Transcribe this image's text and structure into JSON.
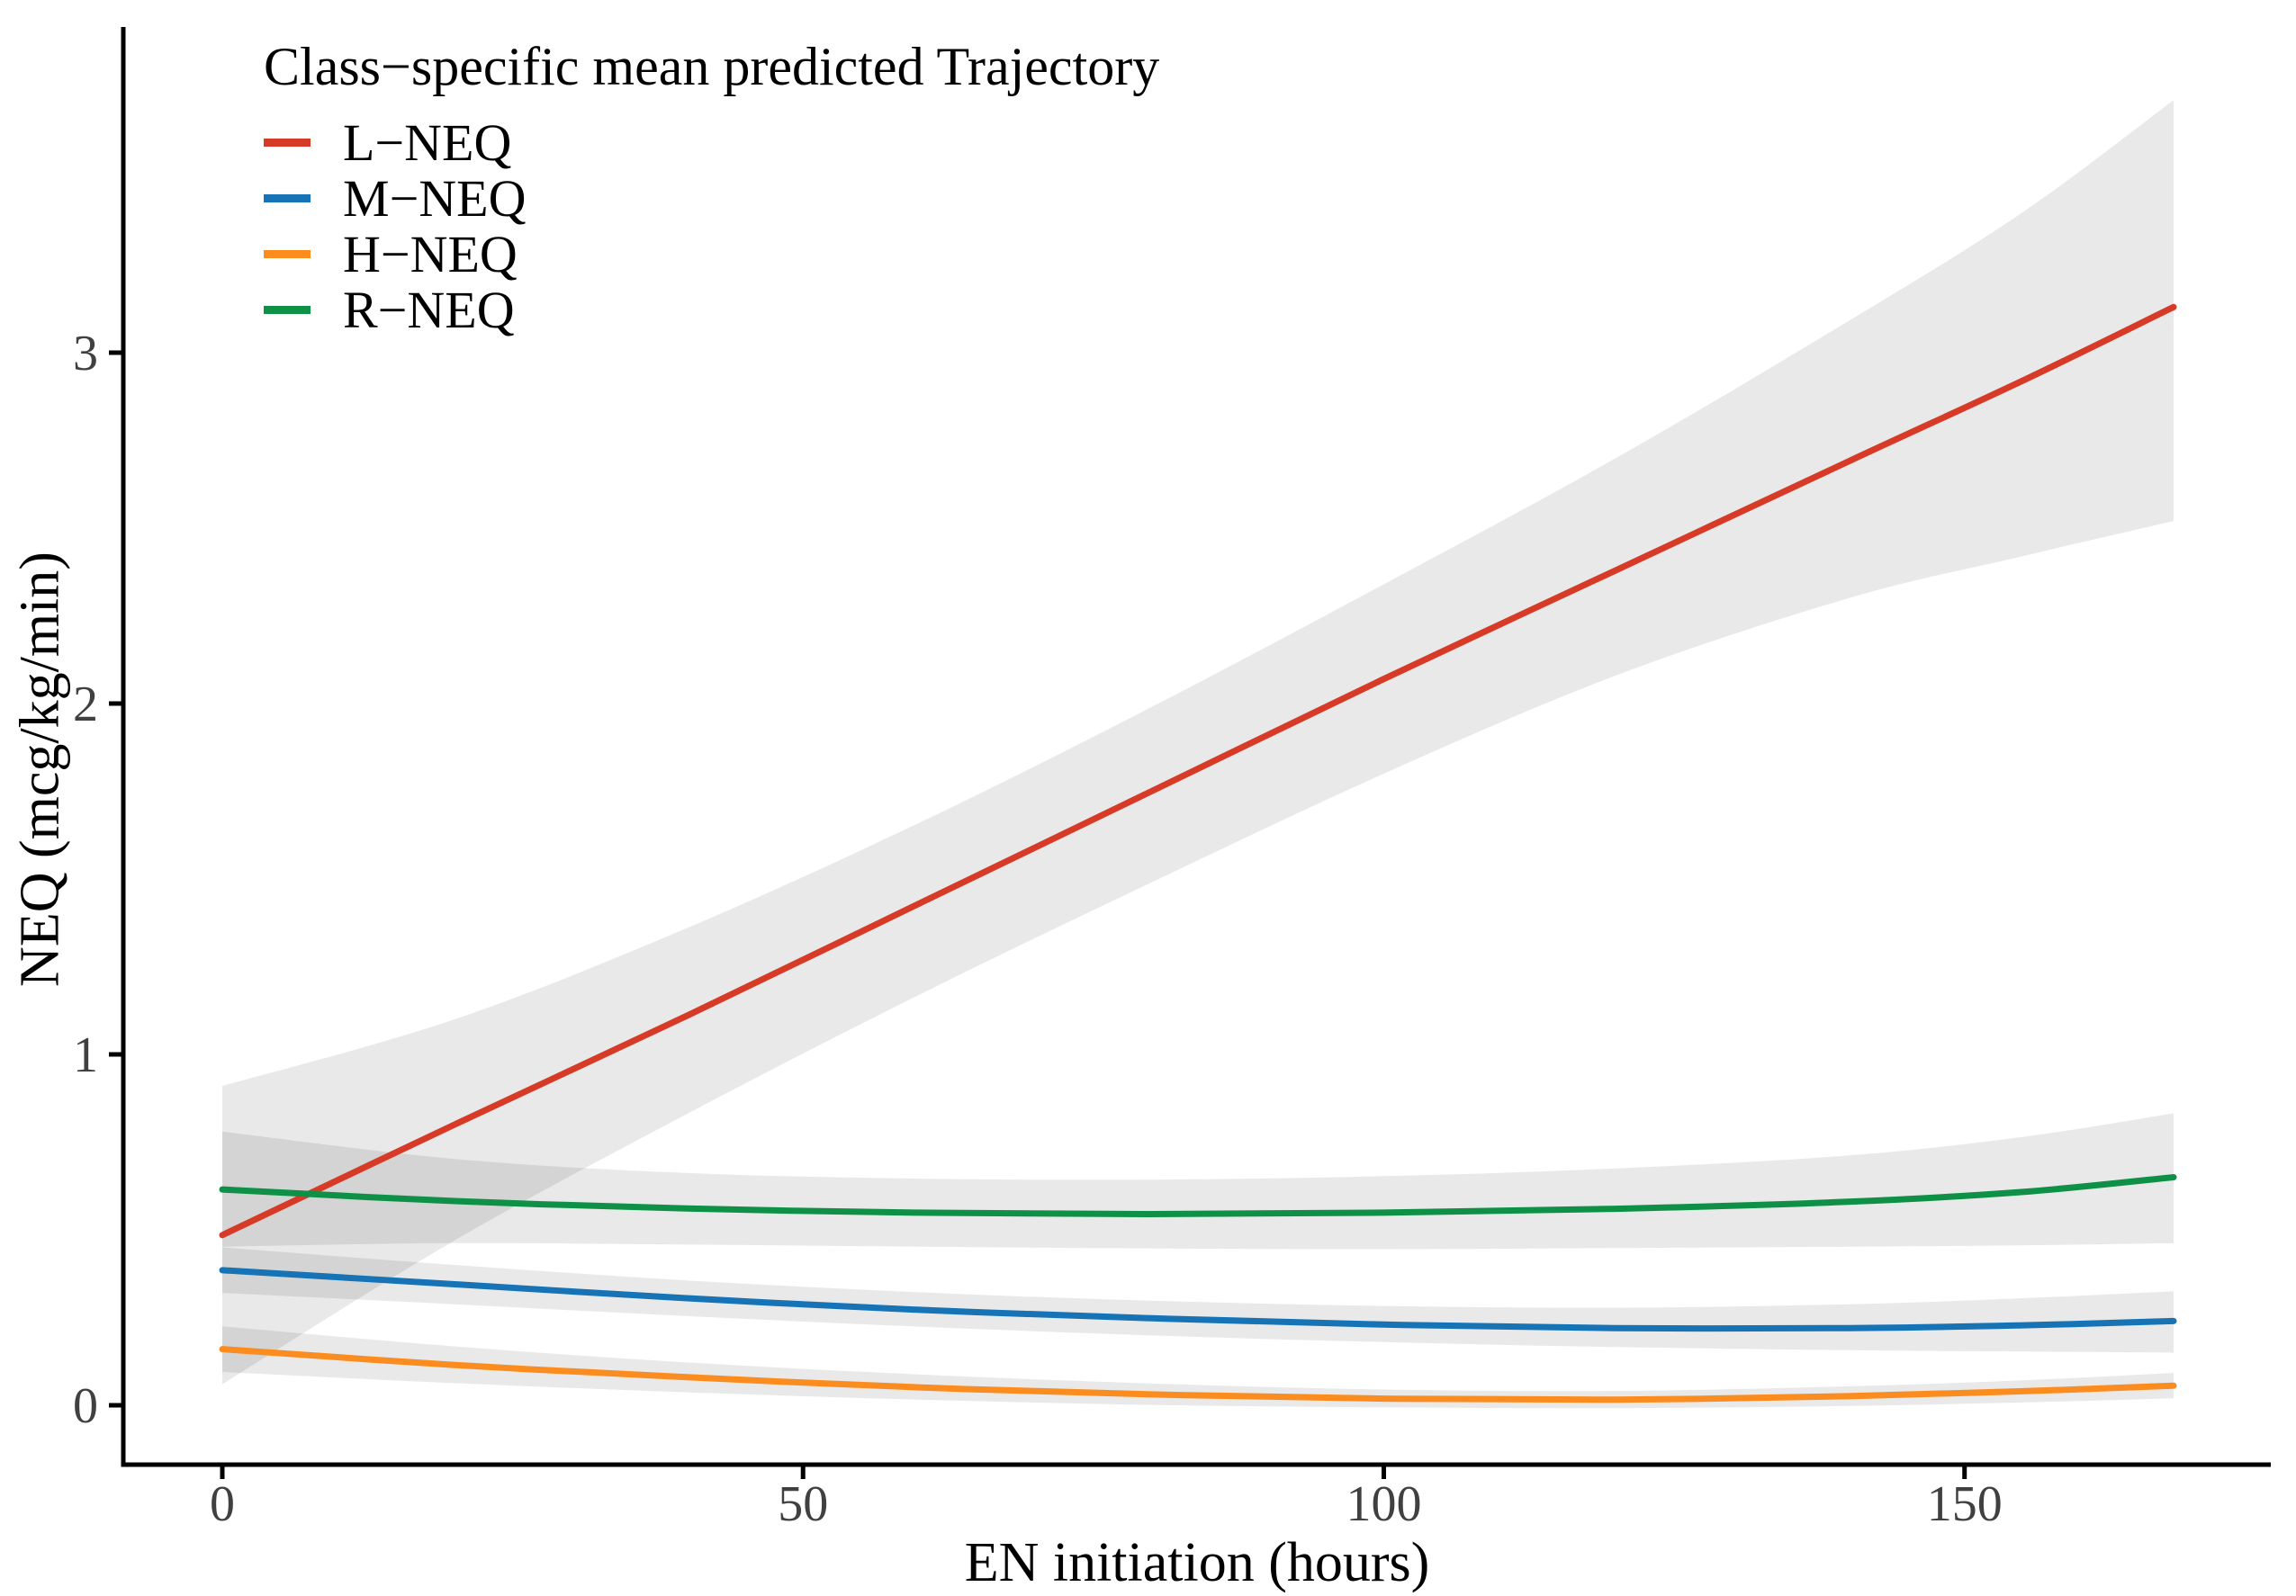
{
  "figure": {
    "background": "#ffffff",
    "text_color": "#000000",
    "tick_label_color": "#404040",
    "axis_color": "#000000"
  },
  "legend": {
    "title": "Class−specific mean predicted Trajectory",
    "entries": [
      {
        "name": "L−NEQ",
        "color": "#d73a27"
      },
      {
        "name": "M−NEQ",
        "color": "#1673b6"
      },
      {
        "name": "H−NEQ",
        "color": "#fb8c1f"
      },
      {
        "name": "R−NEQ",
        "color": "#0e9147"
      }
    ]
  },
  "chart_data": {
    "type": "line",
    "title": "",
    "xlabel": "EN initiation (hours)",
    "ylabel": "NEQ (mcg/kg/min)",
    "xlim": [
      0,
      168
    ],
    "ylim": [
      -0.2,
      3.93
    ],
    "xticks": [
      0,
      50,
      100,
      150
    ],
    "yticks": [
      0,
      1,
      2,
      3
    ],
    "grid": false,
    "legend_position": "top-left-inside",
    "band_fill": "rgba(0,0,0,0.086)",
    "x": [
      0,
      20,
      40,
      60,
      80,
      100,
      120,
      140,
      155,
      168
    ],
    "series": [
      {
        "name": "L−NEQ",
        "color": "#d73a27",
        "mean": [
          0.485,
          0.8,
          1.11,
          1.43,
          1.75,
          2.07,
          2.38,
          2.69,
          2.92,
          3.13
        ],
        "lower": [
          0.06,
          0.47,
          0.83,
          1.17,
          1.49,
          1.8,
          2.08,
          2.3,
          2.42,
          2.52
        ],
        "upper": [
          0.91,
          1.1,
          1.36,
          1.66,
          1.99,
          2.34,
          2.7,
          3.09,
          3.4,
          3.72
        ]
      },
      {
        "name": "M−NEQ",
        "color": "#1673b6",
        "mean": [
          0.385,
          0.345,
          0.305,
          0.272,
          0.248,
          0.23,
          0.22,
          0.22,
          0.228,
          0.24
        ],
        "lower": [
          0.32,
          0.288,
          0.254,
          0.224,
          0.199,
          0.18,
          0.166,
          0.157,
          0.153,
          0.15
        ],
        "upper": [
          0.45,
          0.4,
          0.356,
          0.322,
          0.298,
          0.283,
          0.278,
          0.288,
          0.305,
          0.325
        ]
      },
      {
        "name": "H−NEQ",
        "color": "#fb8c1f",
        "mean": [
          0.16,
          0.115,
          0.08,
          0.051,
          0.031,
          0.019,
          0.016,
          0.026,
          0.04,
          0.056
        ],
        "lower": [
          0.095,
          0.063,
          0.037,
          0.016,
          0.001,
          -0.006,
          -0.008,
          -0.002,
          0.008,
          0.02
        ],
        "upper": [
          0.225,
          0.168,
          0.122,
          0.088,
          0.062,
          0.045,
          0.041,
          0.054,
          0.071,
          0.092
        ]
      },
      {
        "name": "R−NEQ",
        "color": "#0e9147",
        "mean": [
          0.615,
          0.582,
          0.561,
          0.549,
          0.545,
          0.549,
          0.56,
          0.58,
          0.608,
          0.65
        ],
        "lower": [
          0.452,
          0.462,
          0.458,
          0.452,
          0.447,
          0.445,
          0.448,
          0.452,
          0.456,
          0.462
        ],
        "upper": [
          0.78,
          0.702,
          0.662,
          0.646,
          0.643,
          0.653,
          0.675,
          0.712,
          0.765,
          0.832
        ]
      }
    ]
  }
}
